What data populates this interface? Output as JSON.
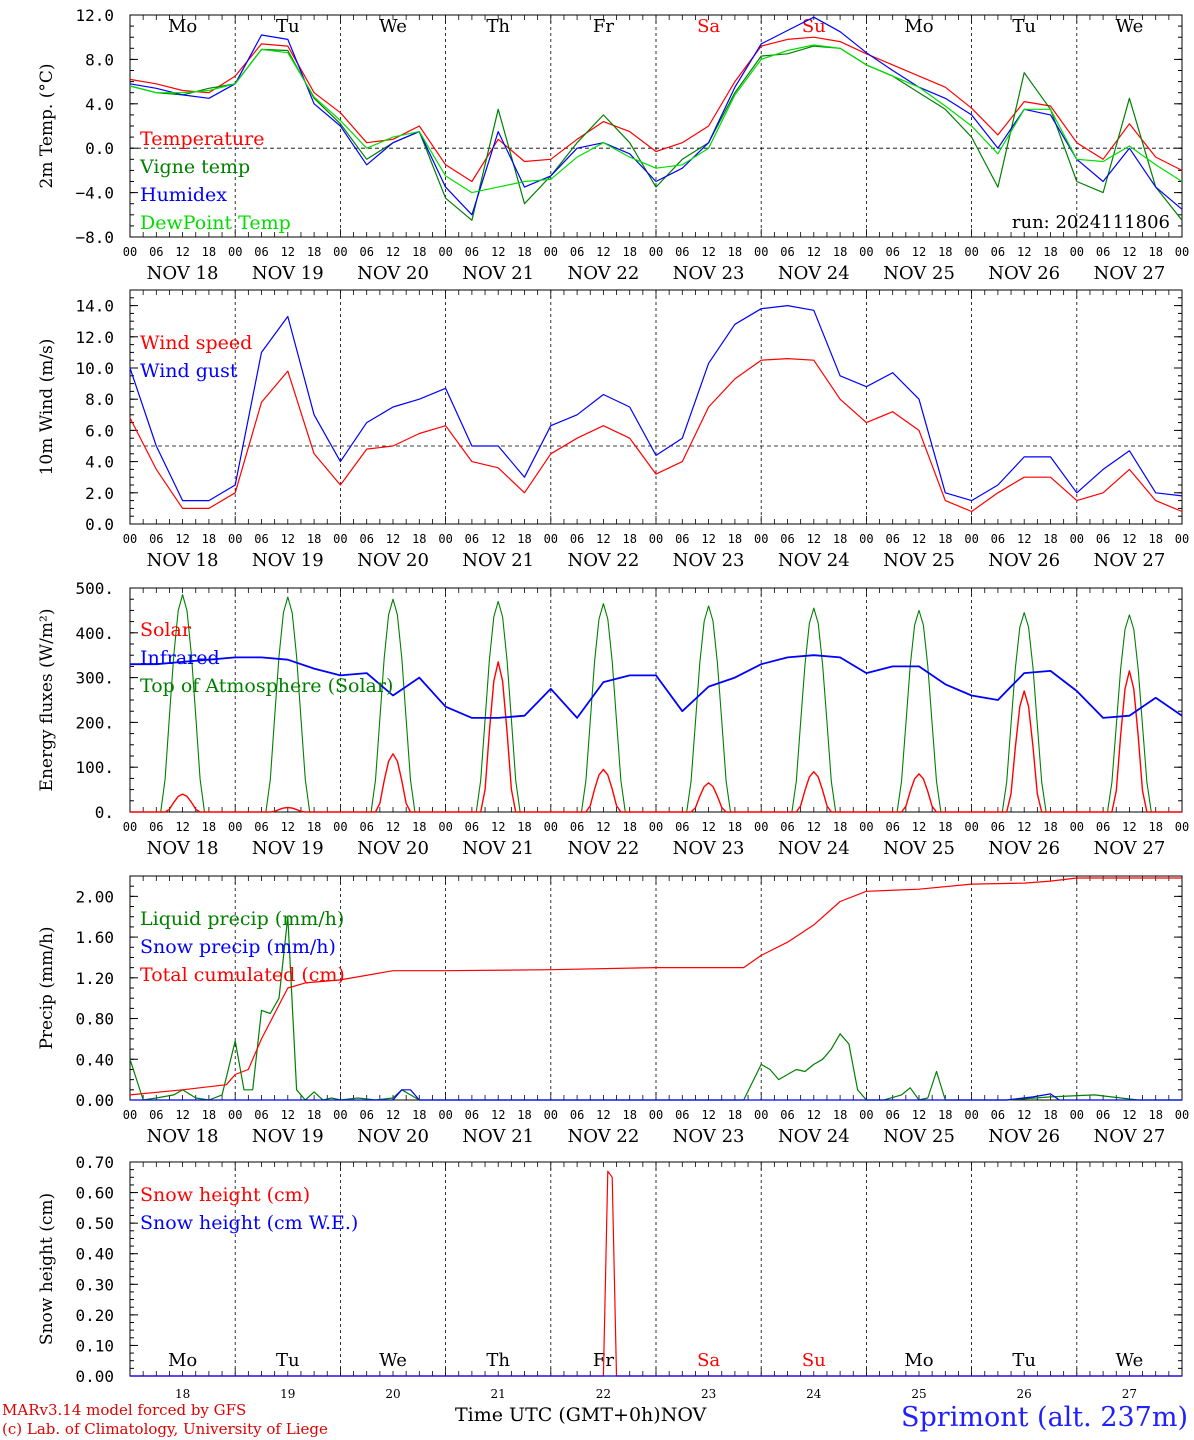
{
  "chart_data": [
    {
      "type": "line",
      "ylabel": "2m Temp. (°C)",
      "ylim": [
        -8,
        12
      ],
      "yticks": [
        "12.0",
        "8.0",
        "4.0",
        "0.0",
        "−4.0",
        "−8.0"
      ],
      "ytick_values": [
        12,
        8,
        4,
        0,
        -4,
        -8
      ],
      "zero_line": 0,
      "day_names": [
        "Mo",
        "Tu",
        "We",
        "Th",
        "Fr",
        "Sa",
        "Su",
        "Mo",
        "Tu",
        "We"
      ],
      "hour_ticks": [
        "00",
        "06",
        "12",
        "18"
      ],
      "day_labels": [
        "NOV 18",
        "NOV 19",
        "NOV 20",
        "NOV 21",
        "NOV 22",
        "NOV 23",
        "NOV 24",
        "NOV 25",
        "NOV 26",
        "NOV 27"
      ],
      "run_label": "run: 2024111806",
      "legend": [
        "Temperature",
        "Vigne temp",
        "Humidex",
        "DewPoint Temp"
      ],
      "x": [
        0,
        6,
        12,
        18,
        24,
        30,
        36,
        42,
        48,
        54,
        60,
        66,
        72,
        78,
        84,
        90,
        96,
        102,
        108,
        114,
        120,
        126,
        132,
        138,
        144,
        150,
        156,
        162,
        168,
        174,
        180,
        186,
        192,
        198,
        204,
        210,
        216,
        222,
        228,
        234,
        240
      ],
      "series": [
        {
          "name": "Temperature",
          "color": "#ff0000",
          "values": [
            6.2,
            5.8,
            5.2,
            5.0,
            6.5,
            9.4,
            9.2,
            5.0,
            3.2,
            0.5,
            0.8,
            2.0,
            -1.5,
            -3.0,
            0.8,
            -1.2,
            -1.0,
            0.8,
            2.4,
            1.5,
            -0.3,
            0.5,
            2.0,
            6.0,
            9.2,
            9.8,
            10.0,
            9.6,
            8.5,
            7.5,
            6.5,
            5.5,
            3.6,
            1.2,
            4.2,
            3.8,
            0.5,
            -1.0,
            2.2,
            -0.8,
            -2.0
          ]
        },
        {
          "name": "Vigne temp",
          "color": "#008000",
          "values": [
            5.6,
            5.0,
            4.8,
            5.4,
            5.8,
            8.9,
            8.8,
            4.5,
            2.2,
            -1.0,
            0.5,
            1.5,
            -4.5,
            -6.5,
            3.5,
            -5.0,
            -2.5,
            0.5,
            3.0,
            0.5,
            -3.5,
            -1.0,
            0.5,
            5.0,
            8.3,
            8.5,
            9.2,
            9.0,
            7.5,
            6.5,
            5.0,
            3.5,
            1.0,
            -3.5,
            6.8,
            3.5,
            -3.0,
            -4.0,
            4.5,
            -3.5,
            -6.5
          ]
        },
        {
          "name": "Humidex",
          "color": "#0000ff",
          "values": [
            5.8,
            5.4,
            4.8,
            4.5,
            5.8,
            10.2,
            9.8,
            4.0,
            2.0,
            -1.5,
            0.5,
            1.5,
            -3.5,
            -6.0,
            1.5,
            -3.5,
            -2.5,
            0.0,
            0.5,
            -0.5,
            -3.0,
            -1.8,
            0.5,
            5.5,
            9.4,
            10.6,
            11.8,
            10.5,
            8.6,
            7.0,
            5.5,
            4.5,
            3.0,
            0.0,
            3.5,
            3.0,
            -1.0,
            -3.0,
            0.0,
            -3.5,
            -5.5
          ]
        },
        {
          "name": "DewPoint Temp",
          "color": "#00dd00",
          "values": [
            5.6,
            5.0,
            5.0,
            5.2,
            5.8,
            8.9,
            8.6,
            4.6,
            2.5,
            0.0,
            1.0,
            1.5,
            -2.5,
            -4.0,
            -3.5,
            -3.0,
            -2.8,
            -0.8,
            0.5,
            -0.8,
            -1.8,
            -1.5,
            0.0,
            4.8,
            8.0,
            8.8,
            9.3,
            9.0,
            7.5,
            6.5,
            5.5,
            3.8,
            2.0,
            -0.5,
            3.5,
            3.5,
            -1.0,
            -1.2,
            0.2,
            -1.5,
            -3.0
          ]
        }
      ]
    },
    {
      "type": "line",
      "ylabel": "10m Wind (m/s)",
      "ylim": [
        0,
        15
      ],
      "yticks": [
        "14.0",
        "12.0",
        "10.0",
        "8.0",
        "6.0",
        "4.0",
        "2.0",
        "0.0"
      ],
      "ytick_values": [
        14,
        12,
        10,
        8,
        6,
        4,
        2,
        0
      ],
      "ref_line": 5,
      "day_labels": [
        "NOV 18",
        "NOV 19",
        "NOV 20",
        "NOV 21",
        "NOV 22",
        "NOV 23",
        "NOV 24",
        "NOV 25",
        "NOV 26",
        "NOV 27"
      ],
      "hour_ticks": [
        "00",
        "06",
        "12",
        "18"
      ],
      "legend": [
        "Wind speed",
        "Wind gust"
      ],
      "x": [
        0,
        6,
        12,
        18,
        24,
        30,
        36,
        42,
        48,
        54,
        60,
        66,
        72,
        78,
        84,
        90,
        96,
        102,
        108,
        114,
        120,
        126,
        132,
        138,
        144,
        150,
        156,
        162,
        168,
        174,
        180,
        186,
        192,
        198,
        204,
        210,
        216,
        222,
        228,
        234,
        240
      ],
      "series": [
        {
          "name": "Wind speed",
          "color": "#ff0000",
          "values": [
            6.8,
            3.5,
            1.0,
            1.0,
            2.0,
            7.8,
            9.8,
            4.5,
            2.5,
            4.8,
            5.0,
            5.8,
            6.3,
            4.0,
            3.6,
            2.0,
            4.5,
            5.5,
            6.3,
            5.5,
            3.2,
            4.0,
            7.5,
            9.3,
            10.5,
            10.6,
            10.5,
            8.0,
            6.5,
            7.2,
            6.0,
            1.5,
            0.8,
            2.0,
            3.0,
            3.0,
            1.5,
            2.0,
            3.5,
            1.5,
            0.8
          ]
        },
        {
          "name": "Wind gust",
          "color": "#0000ff",
          "values": [
            10.0,
            5.0,
            1.5,
            1.5,
            2.5,
            11.0,
            13.3,
            7.0,
            4.0,
            6.5,
            7.5,
            8.0,
            8.7,
            5.0,
            5.0,
            3.0,
            6.3,
            7.0,
            8.3,
            7.5,
            4.4,
            5.5,
            10.3,
            12.8,
            13.8,
            14.0,
            13.7,
            9.5,
            8.8,
            9.7,
            8.0,
            2.0,
            1.5,
            2.5,
            4.3,
            4.3,
            2.0,
            3.5,
            4.7,
            2.0,
            1.8
          ]
        }
      ]
    },
    {
      "type": "line",
      "ylabel": "Energy fluxes (W/m²)",
      "ylim": [
        0,
        500
      ],
      "yticks": [
        "500.",
        "400.",
        "300.",
        "200.",
        "100.",
        "0."
      ],
      "ytick_values": [
        500,
        400,
        300,
        200,
        100,
        0
      ],
      "day_labels": [
        "NOV 18",
        "NOV 19",
        "NOV 20",
        "NOV 21",
        "NOV 22",
        "NOV 23",
        "NOV 24",
        "NOV 25",
        "NOV 26",
        "NOV 27"
      ],
      "hour_ticks": [
        "00",
        "06",
        "12",
        "18"
      ],
      "legend": [
        "Solar",
        "Infrared",
        "Top of Atmosphere (Solar)"
      ],
      "day_peaks": {
        "solar": [
          40,
          10,
          130,
          335,
          95,
          65,
          90,
          85,
          270,
          315
        ],
        "toa": [
          485,
          480,
          475,
          470,
          465,
          460,
          455,
          450,
          445,
          440
        ]
      },
      "series": [
        {
          "name": "Infrared",
          "color": "#0000ff",
          "x": [
            0,
            6,
            12,
            18,
            24,
            30,
            36,
            42,
            48,
            54,
            60,
            66,
            72,
            78,
            84,
            90,
            96,
            102,
            108,
            114,
            120,
            126,
            132,
            138,
            144,
            150,
            156,
            162,
            168,
            174,
            180,
            186,
            192,
            198,
            204,
            210,
            216,
            222,
            228,
            234,
            240
          ],
          "values": [
            330,
            330,
            335,
            340,
            345,
            345,
            340,
            320,
            305,
            310,
            260,
            300,
            235,
            210,
            210,
            215,
            275,
            210,
            290,
            305,
            305,
            225,
            280,
            300,
            330,
            345,
            350,
            345,
            310,
            325,
            325,
            285,
            260,
            250,
            310,
            315,
            270,
            210,
            215,
            255,
            215
          ]
        }
      ]
    },
    {
      "type": "line",
      "ylabel": "Precip (mm/h)",
      "ylim": [
        0,
        2.2
      ],
      "yticks": [
        "2.00",
        "1.60",
        "1.20",
        "0.80",
        "0.40",
        "0.00"
      ],
      "ytick_values": [
        2.0,
        1.6,
        1.2,
        0.8,
        0.4,
        0.0
      ],
      "day_labels": [
        "NOV 18",
        "NOV 19",
        "NOV 20",
        "NOV 21",
        "NOV 22",
        "NOV 23",
        "NOV 24",
        "NOV 25",
        "NOV 26",
        "NOV 27"
      ],
      "hour_ticks": [
        "00",
        "06",
        "12",
        "18"
      ],
      "legend": [
        "Liquid precip (mm/h)",
        "Snow precip (mm/h)",
        "Total cumulated (cm)"
      ],
      "series": [
        {
          "name": "Liquid precip (mm/h)",
          "color": "#008000",
          "x": [
            0,
            3,
            6,
            10,
            12,
            15,
            18,
            21,
            24,
            26,
            28,
            30,
            32,
            34,
            36,
            38,
            40,
            42,
            44,
            46,
            48,
            52,
            56,
            60,
            62,
            64,
            66,
            70,
            80,
            96,
            120,
            140,
            144,
            146,
            148,
            150,
            152,
            154,
            156,
            158,
            160,
            162,
            164,
            166,
            168,
            172,
            176,
            178,
            180,
            182,
            184,
            186,
            190,
            200,
            210,
            220,
            230,
            240
          ],
          "values": [
            0.4,
            0.0,
            0.02,
            0.05,
            0.1,
            0.02,
            0.0,
            0.05,
            0.58,
            0.1,
            0.1,
            0.88,
            0.85,
            1.0,
            1.8,
            0.1,
            0.0,
            0.08,
            0.0,
            0.02,
            0.0,
            0.02,
            0.0,
            0.02,
            0.1,
            0.05,
            0.0,
            0.0,
            0.0,
            0.0,
            0.0,
            0.0,
            0.35,
            0.3,
            0.2,
            0.25,
            0.3,
            0.28,
            0.35,
            0.4,
            0.5,
            0.65,
            0.55,
            0.1,
            0.0,
            0.0,
            0.05,
            0.12,
            0.0,
            0.02,
            0.28,
            0.0,
            0.0,
            0.0,
            0.03,
            0.05,
            0.0,
            0.0
          ]
        },
        {
          "name": "Snow precip (mm/h)",
          "color": "#0000ff",
          "x": [
            0,
            60,
            62,
            64,
            66,
            68,
            200,
            206,
            210,
            212,
            240
          ],
          "values": [
            0.0,
            0.0,
            0.1,
            0.1,
            0.0,
            0.0,
            0.0,
            0.03,
            0.06,
            0.0,
            0.0
          ]
        },
        {
          "name": "Total cumulated (cm)",
          "color": "#ff0000",
          "x": [
            0,
            12,
            22,
            24,
            27,
            30,
            36,
            40,
            48,
            60,
            72,
            96,
            120,
            140,
            144,
            150,
            156,
            162,
            168,
            180,
            192,
            204,
            210,
            216,
            228,
            240
          ],
          "values": [
            0.05,
            0.1,
            0.15,
            0.25,
            0.3,
            0.6,
            1.1,
            1.15,
            1.18,
            1.27,
            1.27,
            1.28,
            1.3,
            1.3,
            1.42,
            1.55,
            1.72,
            1.95,
            2.05,
            2.07,
            2.12,
            2.13,
            2.15,
            2.18,
            2.18,
            2.18
          ]
        }
      ]
    },
    {
      "type": "line",
      "ylabel": "Snow height (cm)",
      "ylim": [
        0,
        0.7
      ],
      "yticks": [
        "0.70",
        "0.60",
        "0.50",
        "0.40",
        "0.30",
        "0.20",
        "0.10",
        "0.00"
      ],
      "ytick_values": [
        0.7,
        0.6,
        0.5,
        0.4,
        0.3,
        0.2,
        0.1,
        0.0
      ],
      "day_names": [
        "Mo",
        "Tu",
        "We",
        "Th",
        "Fr",
        "Sa",
        "Su",
        "Mo",
        "Tu",
        "We"
      ],
      "day_numbers": [
        "18",
        "19",
        "20",
        "21",
        "22",
        "23",
        "24",
        "25",
        "26",
        "27"
      ],
      "legend": [
        "Snow height (cm)",
        "Snow height (cm W.E.)"
      ],
      "series": [
        {
          "name": "Snow height (cm)",
          "color": "#ff0000",
          "x": [
            0,
            108,
            109,
            110,
            111,
            240
          ],
          "values": [
            0,
            0,
            0.67,
            0.65,
            0,
            0
          ]
        },
        {
          "name": "Snow height (cm W.E.)",
          "color": "#0000ff",
          "x": [
            0,
            240
          ],
          "values": [
            0,
            0
          ]
        }
      ]
    }
  ],
  "weekend_days": [
    5,
    6
  ],
  "colors": {
    "weekday": "#000000",
    "weekend": "#ff0000",
    "axis": "#000000",
    "grid": "#000000"
  },
  "footer": {
    "credit_line1": "MARv3.14 model forced by GFS",
    "credit_line2": "(c) Lab. of Climatology, University of Liege",
    "x_title": "Time UTC (GMT+0h)NOV",
    "station": "Sprimont (alt. 237m)"
  }
}
